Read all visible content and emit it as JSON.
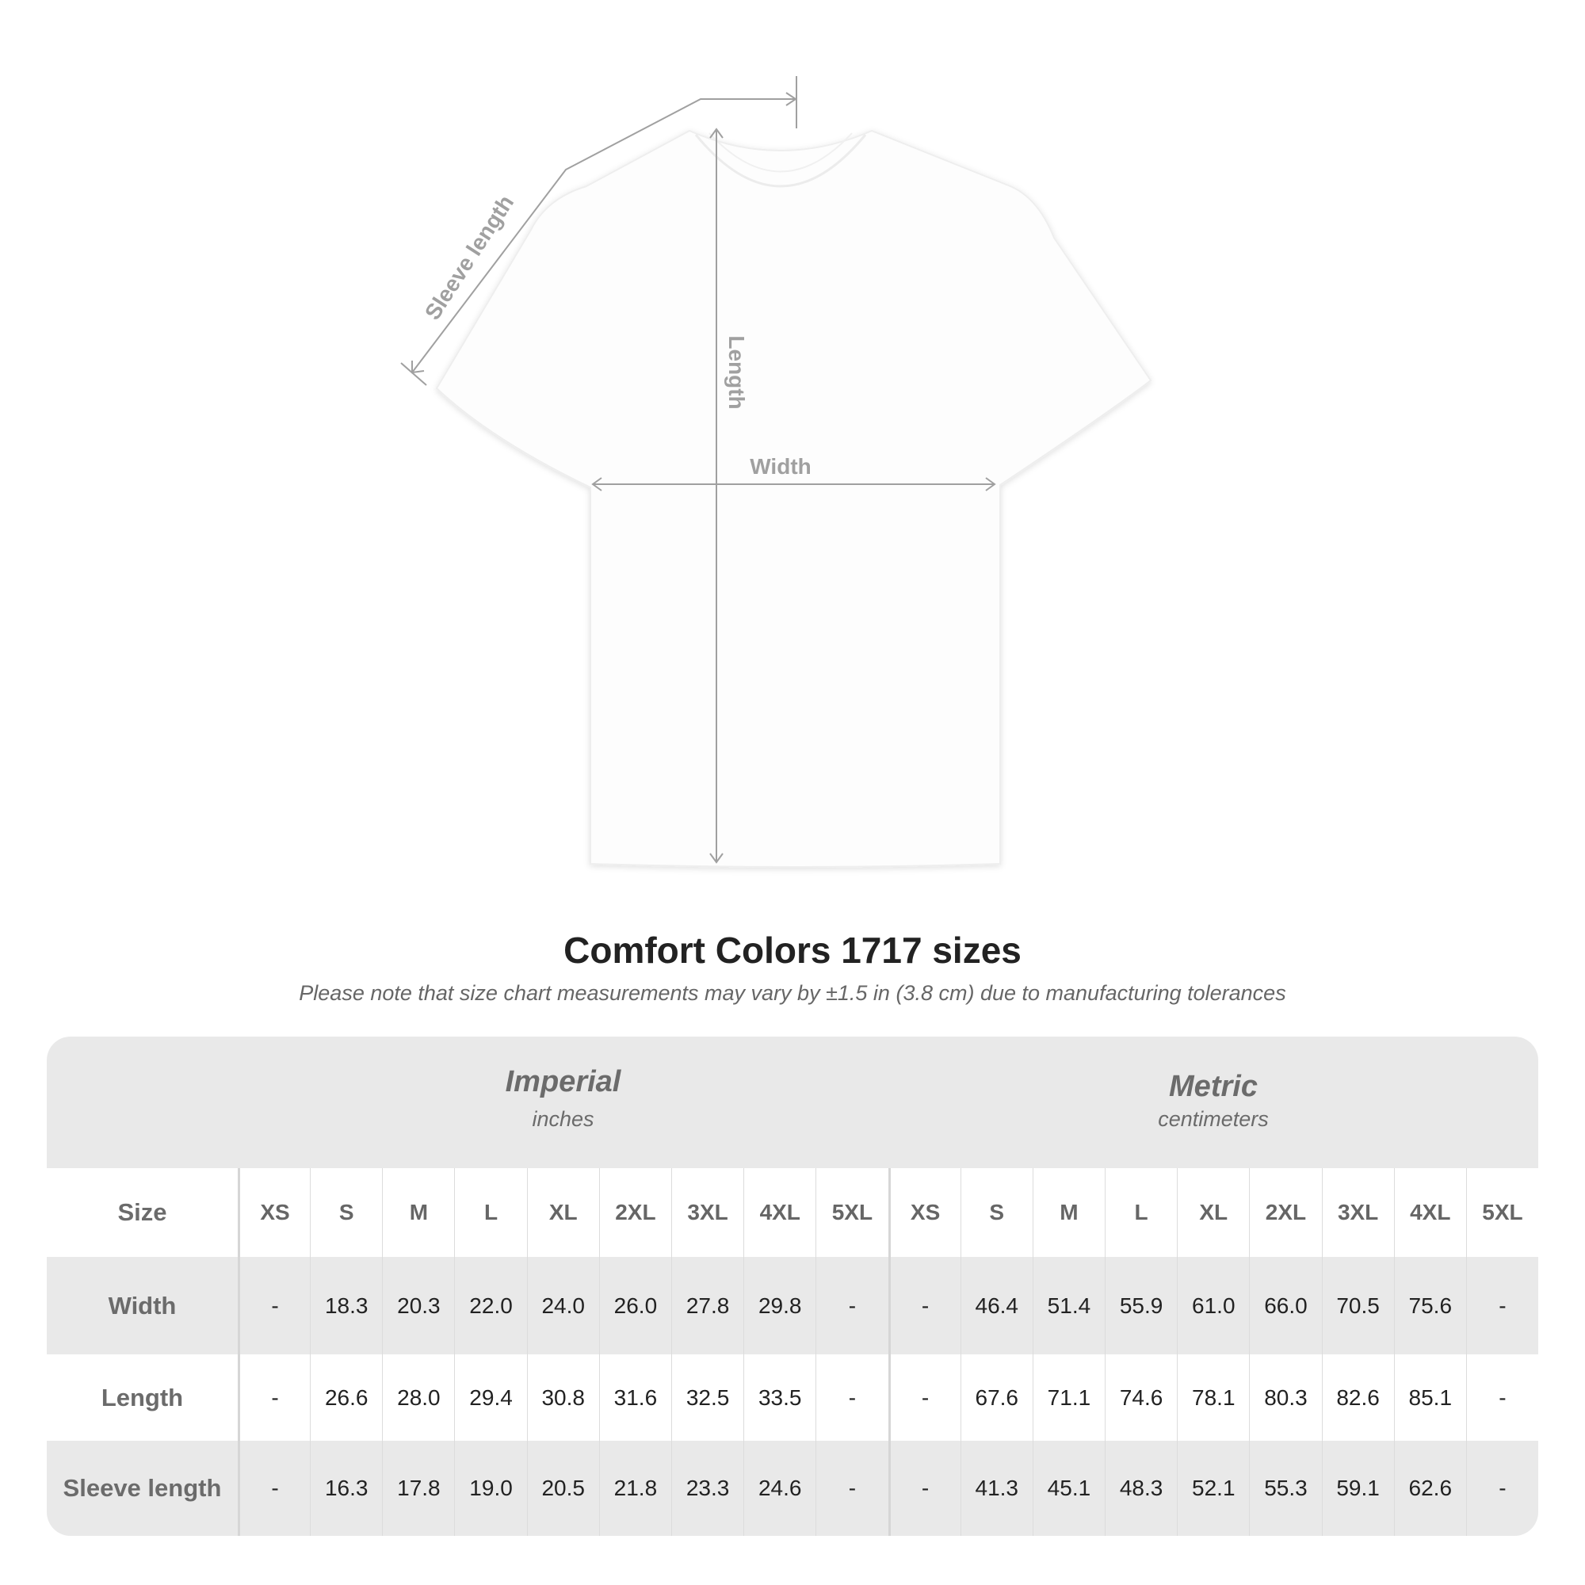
{
  "diagram": {
    "labels": {
      "sleeve": "Sleeve length",
      "length": "Length",
      "width": "Width"
    }
  },
  "title": "Comfort Colors 1717 sizes",
  "note": "Please note that size chart measurements may vary by ±1.5 in (3.8 cm) due to manufacturing tolerances",
  "table": {
    "imperial": {
      "name": "Imperial",
      "unit": "inches"
    },
    "metric": {
      "name": "Metric",
      "unit": "centimeters"
    },
    "size_label": "Size",
    "sizes": [
      "XS",
      "S",
      "M",
      "L",
      "XL",
      "2XL",
      "3XL",
      "4XL",
      "5XL"
    ],
    "rows": [
      {
        "label": "Width",
        "imperial": [
          "-",
          "18.3",
          "20.3",
          "22.0",
          "24.0",
          "26.0",
          "27.8",
          "29.8",
          "-"
        ],
        "metric": [
          "-",
          "46.4",
          "51.4",
          "55.9",
          "61.0",
          "66.0",
          "70.5",
          "75.6",
          "-"
        ]
      },
      {
        "label": "Length",
        "imperial": [
          "-",
          "26.6",
          "28.0",
          "29.4",
          "30.8",
          "31.6",
          "32.5",
          "33.5",
          "-"
        ],
        "metric": [
          "-",
          "67.6",
          "71.1",
          "74.6",
          "78.1",
          "80.3",
          "82.6",
          "85.1",
          "-"
        ]
      },
      {
        "label": "Sleeve length",
        "imperial": [
          "-",
          "16.3",
          "17.8",
          "19.0",
          "20.5",
          "21.8",
          "23.3",
          "24.6",
          "-"
        ],
        "metric": [
          "-",
          "41.3",
          "45.1",
          "48.3",
          "52.1",
          "55.3",
          "59.1",
          "62.6",
          "-"
        ]
      }
    ]
  },
  "colors": {
    "table_bg": "#e9e9e9",
    "header_text": "#6b6b6b",
    "annotation": "#a0a0a0"
  }
}
